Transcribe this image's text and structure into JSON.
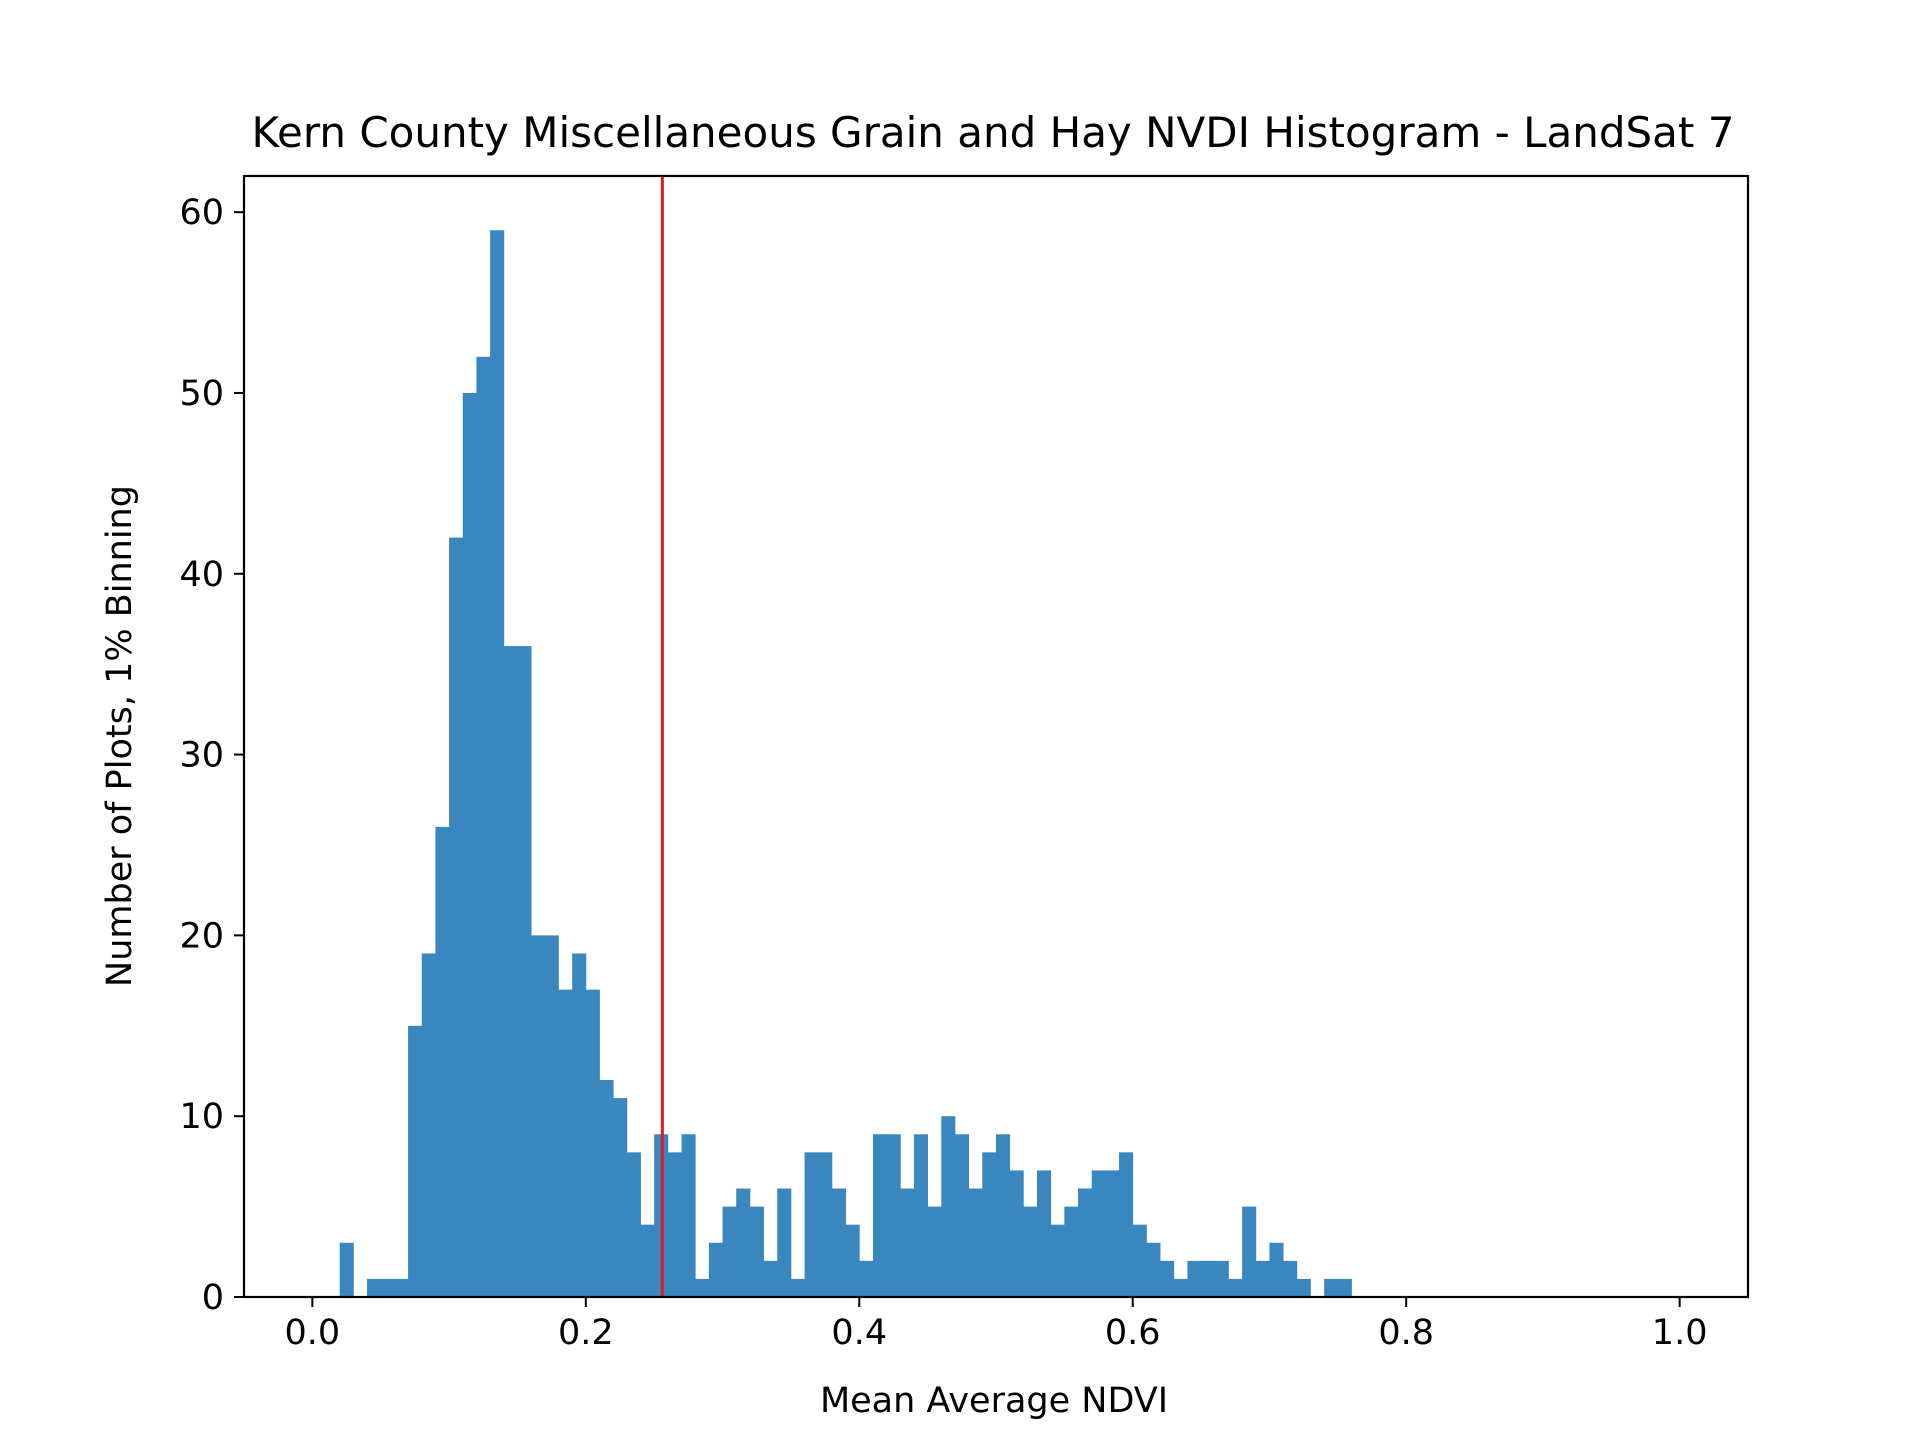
{
  "chart_data": {
    "type": "bar",
    "title": "Kern County Miscellaneous Grain and Hay NVDI Histogram - LandSat 7",
    "xlabel": "Mean Average NDVI",
    "ylabel": "Number of Plots, 1% Binning",
    "xlim": [
      -0.05,
      1.05
    ],
    "ylim": [
      0,
      62
    ],
    "xticks": [
      0.0,
      0.2,
      0.4,
      0.6,
      0.8,
      1.0
    ],
    "xtick_labels": [
      "0.0",
      "0.2",
      "0.4",
      "0.6",
      "0.8",
      "1.0"
    ],
    "yticks": [
      0,
      10,
      20,
      30,
      40,
      50,
      60
    ],
    "ytick_labels": [
      "0",
      "10",
      "20",
      "30",
      "40",
      "50",
      "60"
    ],
    "bin_start": 0.0,
    "bin_width": 0.01,
    "values": [
      0,
      0,
      3,
      0,
      1,
      1,
      1,
      15,
      19,
      26,
      42,
      50,
      52,
      59,
      36,
      36,
      20,
      20,
      17,
      19,
      17,
      12,
      11,
      8,
      4,
      9,
      8,
      9,
      1,
      3,
      5,
      6,
      5,
      2,
      6,
      1,
      8,
      8,
      6,
      4,
      2,
      9,
      9,
      6,
      9,
      5,
      10,
      9,
      6,
      8,
      9,
      7,
      5,
      7,
      4,
      5,
      6,
      7,
      7,
      8,
      4,
      3,
      2,
      1,
      2,
      2,
      2,
      1,
      5,
      2,
      3,
      2,
      1,
      0,
      1,
      1,
      0,
      0,
      0,
      0,
      0,
      0,
      0,
      0,
      0,
      0,
      0,
      0,
      0,
      0,
      0,
      0,
      0,
      0,
      0,
      0,
      0,
      0,
      0,
      0
    ],
    "reference_line_x": 0.256,
    "colors": {
      "bars": "#3a86be",
      "reference_line": "#e8191c",
      "axes": "#000000"
    },
    "grid": false
  }
}
